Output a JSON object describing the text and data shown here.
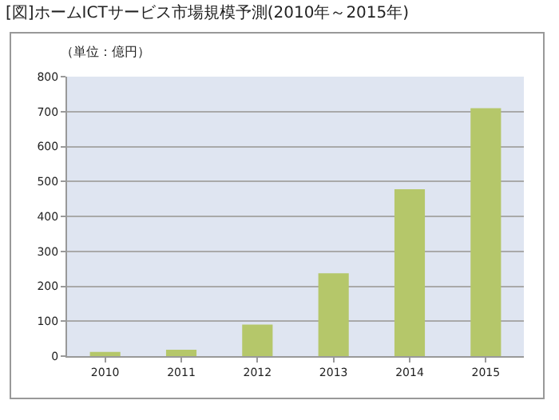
{
  "chart_data": {
    "type": "bar",
    "title": "[図]ホームICTサービス市場規模予測(2010年～2015年)",
    "ylabel": "（単位：億円）",
    "categories": [
      "2010",
      "2011",
      "2012",
      "2013",
      "2014",
      "2015"
    ],
    "values": [
      12,
      18,
      90,
      237,
      478,
      710
    ],
    "color": "#b5c76a",
    "ylim": [
      0,
      800
    ],
    "yticks": [
      0,
      100,
      200,
      300,
      400,
      500,
      600,
      700,
      800
    ],
    "grid": "y"
  }
}
